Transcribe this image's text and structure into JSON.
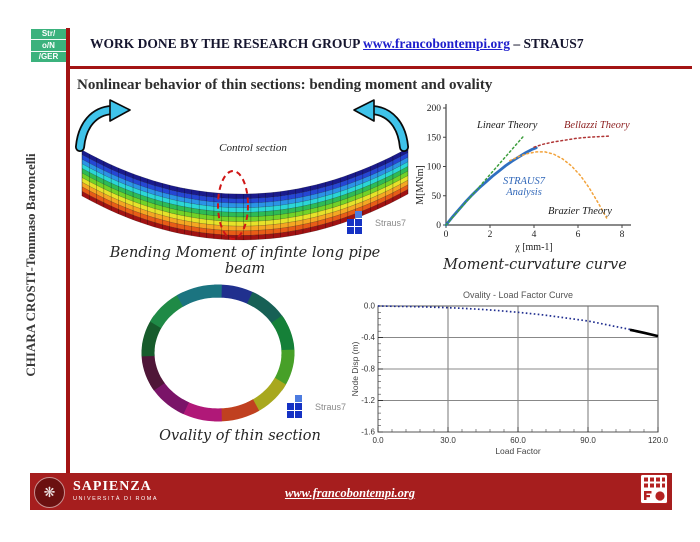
{
  "slide": {
    "logo": {
      "line1": "Str/",
      "line2": "o/N",
      "line3": "/GER"
    },
    "header": {
      "prefix": "WORK DONE BY THE RESEARCH GROUP",
      "link_text": "www.francobontempi.org",
      "suffix": "– STRAUS7"
    },
    "title": "Nonlinear behavior of thin sections: bending moment and ovality",
    "sidebar_author": "CHIARA CROSTI-Tommaso Baroncelli"
  },
  "figures": {
    "beam": {
      "control_label": "Control section",
      "caption": "Bending Moment of infinte long pipe beam",
      "logo_text": "Straus7",
      "stripe_colors": [
        "#1a1a8c",
        "#2546d4",
        "#2b93e6",
        "#2bd6d6",
        "#2dbb55",
        "#72d228",
        "#e6e22a",
        "#f5a623",
        "#e85c17",
        "#a11212"
      ]
    },
    "ovality": {
      "caption": "Ovality of thin section",
      "logo_text": "Straus7",
      "segment_colors": [
        "#20308e",
        "#176055",
        "#158038",
        "#47a028",
        "#a8a81e",
        "#c04020",
        "#b01878",
        "#7a1468",
        "#4f1638",
        "#175c2c",
        "#1f8a46",
        "#1b7480"
      ]
    }
  },
  "chart_data": [
    {
      "type": "line",
      "title": "Moment-curvature curve",
      "xlabel": "χ [mm-1]",
      "ylabel": "M[MNm]",
      "xlim": [
        0,
        8
      ],
      "ylim": [
        0,
        200
      ],
      "xticks": [
        0,
        2,
        4,
        6,
        8
      ],
      "yticks": [
        0,
        50,
        100,
        150,
        200
      ],
      "grid": false,
      "legend_position": "annotations on plot",
      "series": [
        {
          "name": "STRAUS7 Analysis",
          "style": "solid",
          "color": "#2f6fc1",
          "points": [
            [
              0,
              0
            ],
            [
              0.3,
              14
            ],
            [
              0.6,
              27
            ],
            [
              0.9,
              40
            ],
            [
              1.2,
              52
            ],
            [
              1.5,
              63
            ],
            [
              1.8,
              73
            ],
            [
              2.1,
              83
            ],
            [
              2.4,
              92
            ],
            [
              2.7,
              101
            ],
            [
              3.0,
              109
            ],
            [
              3.3,
              116
            ],
            [
              3.6,
              123
            ],
            [
              3.9,
              129
            ],
            [
              4.1,
              132
            ]
          ]
        },
        {
          "name": "Linear Theory",
          "style": "dotted",
          "color": "#3d9e3d",
          "points": [
            [
              0,
              0
            ],
            [
              3.55,
              153
            ]
          ]
        },
        {
          "name": "Bellazzi Theory",
          "style": "dotted",
          "color": "#b03535",
          "points": [
            [
              4.0,
              133
            ],
            [
              4.4,
              138
            ],
            [
              4.9,
              142
            ],
            [
              5.4,
              145
            ],
            [
              5.9,
              148
            ],
            [
              6.4,
              150
            ],
            [
              6.9,
              151
            ],
            [
              7.4,
              152
            ]
          ]
        },
        {
          "name": "Brazier Theory",
          "style": "dotted",
          "color": "#f2a33c",
          "points": [
            [
              2.9,
              110
            ],
            [
              3.3,
              117
            ],
            [
              3.7,
              122
            ],
            [
              4.1,
              125
            ],
            [
              4.5,
              125
            ],
            [
              4.9,
              121
            ],
            [
              5.3,
              113
            ],
            [
              5.7,
              101
            ],
            [
              6.1,
              85
            ],
            [
              6.5,
              64
            ],
            [
              6.9,
              39
            ],
            [
              7.3,
              12
            ]
          ]
        }
      ]
    },
    {
      "type": "scatter",
      "title": "Ovality - Load Factor Curve",
      "xlabel": "Load Factor",
      "ylabel": "Node Disp (m)",
      "xlim": [
        0,
        120
      ],
      "ylim": [
        -1.6,
        0
      ],
      "xticks": [
        "0.0",
        "30.0",
        "60.0",
        "90.0",
        "120.0"
      ],
      "yticks": [
        "0.0",
        "-0.4",
        "-0.8",
        "-1.2",
        "-1.6"
      ],
      "grid": true,
      "series": [
        {
          "name": "Node Disp",
          "style": "dotted",
          "color": "#1f2d8f",
          "points": [
            [
              0,
              0
            ],
            [
              5,
              -0.002
            ],
            [
              10,
              -0.005
            ],
            [
              15,
              -0.008
            ],
            [
              20,
              -0.012
            ],
            [
              25,
              -0.017
            ],
            [
              30,
              -0.022
            ],
            [
              35,
              -0.028
            ],
            [
              40,
              -0.035
            ],
            [
              45,
              -0.044
            ],
            [
              50,
              -0.055
            ],
            [
              55,
              -0.067
            ],
            [
              60,
              -0.08
            ],
            [
              65,
              -0.095
            ],
            [
              70,
              -0.11
            ],
            [
              75,
              -0.13
            ],
            [
              80,
              -0.15
            ],
            [
              85,
              -0.17
            ],
            [
              90,
              -0.19
            ],
            [
              95,
              -0.22
            ],
            [
              100,
              -0.25
            ],
            [
              105,
              -0.28
            ],
            [
              110,
              -0.31
            ],
            [
              115,
              -0.345
            ],
            [
              120,
              -0.38
            ]
          ]
        },
        {
          "name": "final segment",
          "style": "solid",
          "color": "#000000",
          "points": [
            [
              108,
              -0.302
            ],
            [
              114,
              -0.34
            ],
            [
              120,
              -0.382
            ]
          ]
        }
      ]
    }
  ],
  "footer": {
    "brand": "SAPIENZA",
    "brand_sub": "UNIVERSITÀ DI ROMA",
    "link_text": "www.francobontempi.org"
  },
  "colors": {
    "accent_red": "#a31414",
    "footer_bar": "#a61e1e",
    "logo_green": "#3bb27d",
    "link_blue": "#1f1fcc",
    "straus7_blue": "#2f6fc1"
  }
}
